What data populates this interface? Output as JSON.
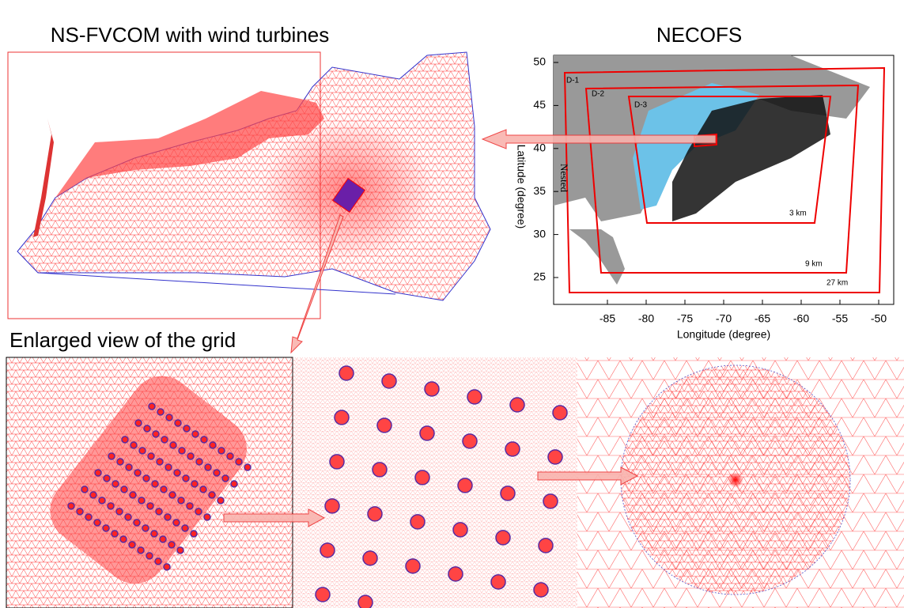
{
  "header": {
    "left_title": "NS-FVCOM with wind turbines",
    "right_title": "NECOFS",
    "bottom_title": "Enlarged view of the grid"
  },
  "necofs_map": {
    "y_label": "Latitude (degree)",
    "x_label": "Longitude (degree)",
    "side_label": "Nested",
    "yticks": [
      50,
      45,
      40,
      35,
      30,
      25
    ],
    "xticks": [
      -85,
      -80,
      -75,
      -70,
      -65,
      -60,
      -55,
      -50
    ],
    "domains": [
      "D-1",
      "D-2",
      "D-3"
    ],
    "resolutions": [
      "3 km",
      "9 km",
      "27 km"
    ]
  }
}
